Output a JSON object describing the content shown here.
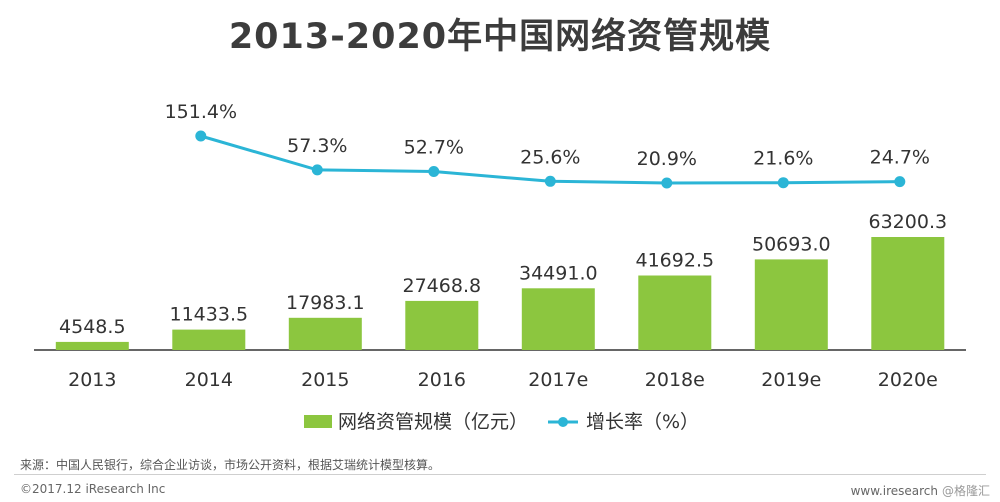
{
  "chart_data": {
    "type": "bar",
    "title": "2013-2020年中国网络资管规模",
    "categories": [
      "2013",
      "2014",
      "2015",
      "2016",
      "2017e",
      "2018e",
      "2019e",
      "2020e"
    ],
    "series": [
      {
        "name": "网络资管规模（亿元）",
        "type": "bar",
        "color": "#8cc63f",
        "values": [
          4548.5,
          11433.5,
          17983.1,
          27468.8,
          34491.0,
          41692.5,
          50693.0,
          63200.3
        ],
        "labels": [
          "4548.5",
          "11433.5",
          "17983.1",
          "27468.8",
          "34491.0",
          "41692.5",
          "50693.0",
          "63200.3"
        ]
      },
      {
        "name": "增长率（%）",
        "type": "line",
        "color": "#2bb5d6",
        "values": [
          null,
          151.4,
          57.3,
          52.7,
          25.6,
          20.9,
          21.6,
          24.7
        ],
        "labels": [
          "",
          "151.4%",
          "57.3%",
          "52.7%",
          "25.6%",
          "20.9%",
          "21.6%",
          "24.7%"
        ]
      }
    ],
    "legend_position": "bottom-center",
    "grid": false
  },
  "footer": {
    "source": "来源：中国人民银行，综合企业访谈，市场公开资料，根据艾瑞统计模型核算。",
    "copyright": "©2017.12 iResearch Inc",
    "website": "www.iresearch",
    "watermark": "@格隆汇"
  }
}
